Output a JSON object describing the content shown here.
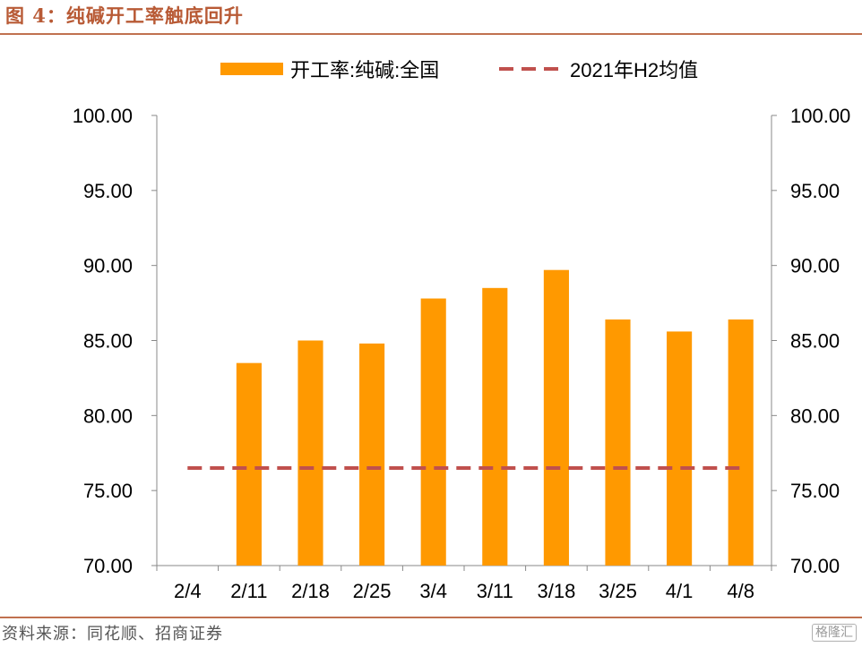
{
  "header": {
    "title": "图 4：纯碱开工率触底回升"
  },
  "footer": {
    "source": "资料来源：同花顺、招商证券",
    "watermark": "格隆汇"
  },
  "colors": {
    "bar": "#ff9900",
    "line": "#c0504d",
    "accent": "#b85a35",
    "axis": "#888888"
  },
  "chart_data": {
    "type": "bar",
    "categories": [
      "2/4",
      "2/11",
      "2/18",
      "2/25",
      "3/4",
      "3/11",
      "3/18",
      "3/25",
      "4/1",
      "4/8"
    ],
    "series": [
      {
        "name": "开工率:纯碱:全国",
        "type": "bar",
        "values": [
          null,
          83.5,
          85.0,
          84.8,
          87.8,
          88.5,
          89.7,
          86.4,
          85.6,
          86.4
        ]
      },
      {
        "name": "2021年H2均值",
        "type": "line",
        "style": "dashed",
        "values": [
          76.5,
          76.5,
          76.5,
          76.5,
          76.5,
          76.5,
          76.5,
          76.5,
          76.5,
          76.5
        ]
      }
    ],
    "ylim": [
      70,
      100
    ],
    "yticks": [
      "70.00",
      "75.00",
      "80.00",
      "85.00",
      "90.00",
      "95.00",
      "100.00"
    ],
    "y2ticks": [
      "70.00",
      "75.00",
      "80.00",
      "85.00",
      "90.00",
      "95.00",
      "100.00"
    ],
    "legend_position": "top",
    "grid": false
  }
}
